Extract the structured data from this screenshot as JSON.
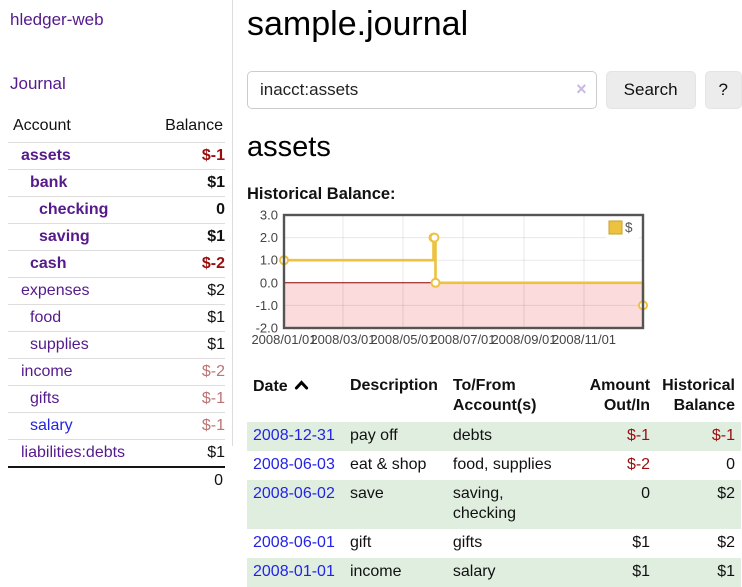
{
  "app": {
    "title": "hledger-web"
  },
  "sidebar": {
    "journal_label": "Journal",
    "accounts": {
      "col_account": "Account",
      "col_balance": "Balance",
      "rows": [
        {
          "name": "assets",
          "balance": "$-1",
          "depth": 0,
          "bold": true,
          "balance_style": "neg",
          "link_color": "purple"
        },
        {
          "name": "bank",
          "balance": "$1",
          "depth": 1,
          "bold": true,
          "balance_style": "pos",
          "link_color": "purple"
        },
        {
          "name": "checking",
          "balance": "0",
          "depth": 2,
          "bold": true,
          "balance_style": "pos",
          "link_color": "purple"
        },
        {
          "name": "saving",
          "balance": "$1",
          "depth": 2,
          "bold": true,
          "balance_style": "pos",
          "link_color": "purple"
        },
        {
          "name": "cash",
          "balance": "$-2",
          "depth": 1,
          "bold": true,
          "balance_style": "neg",
          "link_color": "purple"
        },
        {
          "name": "expenses",
          "balance": "$2",
          "depth": 0,
          "bold": false,
          "balance_style": "pos",
          "link_color": "purple"
        },
        {
          "name": "food",
          "balance": "$1",
          "depth": 1,
          "bold": false,
          "balance_style": "pos",
          "link_color": "purple"
        },
        {
          "name": "supplies",
          "balance": "$1",
          "depth": 1,
          "bold": false,
          "balance_style": "pos",
          "link_color": "purple"
        },
        {
          "name": "income",
          "balance": "$-2",
          "depth": 0,
          "bold": false,
          "balance_style": "neg-faded",
          "link_color": "purple"
        },
        {
          "name": "gifts",
          "balance": "$-1",
          "depth": 1,
          "bold": false,
          "balance_style": "neg-faded",
          "link_color": "purple"
        },
        {
          "name": "salary",
          "balance": "$-1",
          "depth": 1,
          "bold": false,
          "balance_style": "neg-faded",
          "link_color": "blue"
        },
        {
          "name": "liabilities:debts",
          "balance": "$1",
          "depth": 0,
          "bold": false,
          "balance_style": "pos",
          "link_color": "purple"
        }
      ],
      "total": "0"
    }
  },
  "main": {
    "title": "sample.journal",
    "search": {
      "value": "inacct:assets",
      "clear_icon": "×",
      "button_label": "Search",
      "help_label": "?"
    },
    "account_heading": "assets",
    "chart_title": "Historical Balance:",
    "register": {
      "headers": {
        "date": "Date",
        "description": "Description",
        "accounts": "To/From\nAccount(s)",
        "amount": "Amount\nOut/In",
        "balance": "Historical\nBalance"
      },
      "sort": "date-ascending",
      "rows": [
        {
          "date": "2008-12-31",
          "description": "pay off",
          "accounts": "debts",
          "amount": "$-1",
          "amount_style": "neg",
          "balance": "$-1",
          "balance_style": "neg",
          "green": true
        },
        {
          "date": "2008-06-03",
          "description": "eat & shop",
          "accounts": "food, supplies",
          "amount": "$-2",
          "amount_style": "neg",
          "balance": "0",
          "balance_style": "pos",
          "green": false
        },
        {
          "date": "2008-06-02",
          "description": "save",
          "accounts": "saving,\nchecking",
          "amount": "0",
          "amount_style": "pos",
          "balance": "$2",
          "balance_style": "pos",
          "green": true
        },
        {
          "date": "2008-06-01",
          "description": "gift",
          "accounts": "gifts",
          "amount": "$1",
          "amount_style": "pos",
          "balance": "$2",
          "balance_style": "pos",
          "green": false
        },
        {
          "date": "2008-01-01",
          "description": "income",
          "accounts": "salary",
          "amount": "$1",
          "amount_style": "pos",
          "balance": "$1",
          "balance_style": "pos",
          "green": true
        }
      ]
    }
  },
  "chart_data": {
    "type": "line",
    "title": "Historical Balance:",
    "step": true,
    "grid": true,
    "legend_position": "top-right",
    "x_range": [
      "2008-01-01",
      "2008-12-31"
    ],
    "x_ticks": [
      {
        "date": "2008-01-01",
        "label": "2008/01/01"
      },
      {
        "date": "2008-03-01",
        "label": "2008/03/01"
      },
      {
        "date": "2008-05-01",
        "label": "2008/05/01"
      },
      {
        "date": "2008-07-01",
        "label": "2008/07/01"
      },
      {
        "date": "2008-09-01",
        "label": "2008/09/01"
      },
      {
        "date": "2008-11-01",
        "label": "2008/11/01"
      }
    ],
    "y_ticks": [
      {
        "value": 3,
        "label": "3.0"
      },
      {
        "value": 2,
        "label": "2.0"
      },
      {
        "value": 1,
        "label": "1.0"
      },
      {
        "value": 0,
        "label": "0.0"
      },
      {
        "value": -1,
        "label": "-1.0"
      },
      {
        "value": -2,
        "label": "-2.0"
      }
    ],
    "ylim": [
      -2,
      3
    ],
    "series": [
      {
        "name": "$",
        "color": "#edc240",
        "points": [
          [
            "2008-01-01",
            1
          ],
          [
            "2008-06-01",
            2
          ],
          [
            "2008-06-02",
            2
          ],
          [
            "2008-06-03",
            0
          ],
          [
            "2008-12-31",
            -1
          ]
        ]
      }
    ],
    "negative_region_color": "#fbdbdb",
    "zero_line_color": "#8b0000",
    "border_color": "#545454",
    "label_color": "#444444"
  },
  "colors": {
    "link_purple": "#551a8b",
    "link_blue": "#2323e6",
    "negative": "#9b0d0d",
    "negative_faded": "#bc7474",
    "row_green": "#e0eee0",
    "accent_gold": "#edc240"
  }
}
